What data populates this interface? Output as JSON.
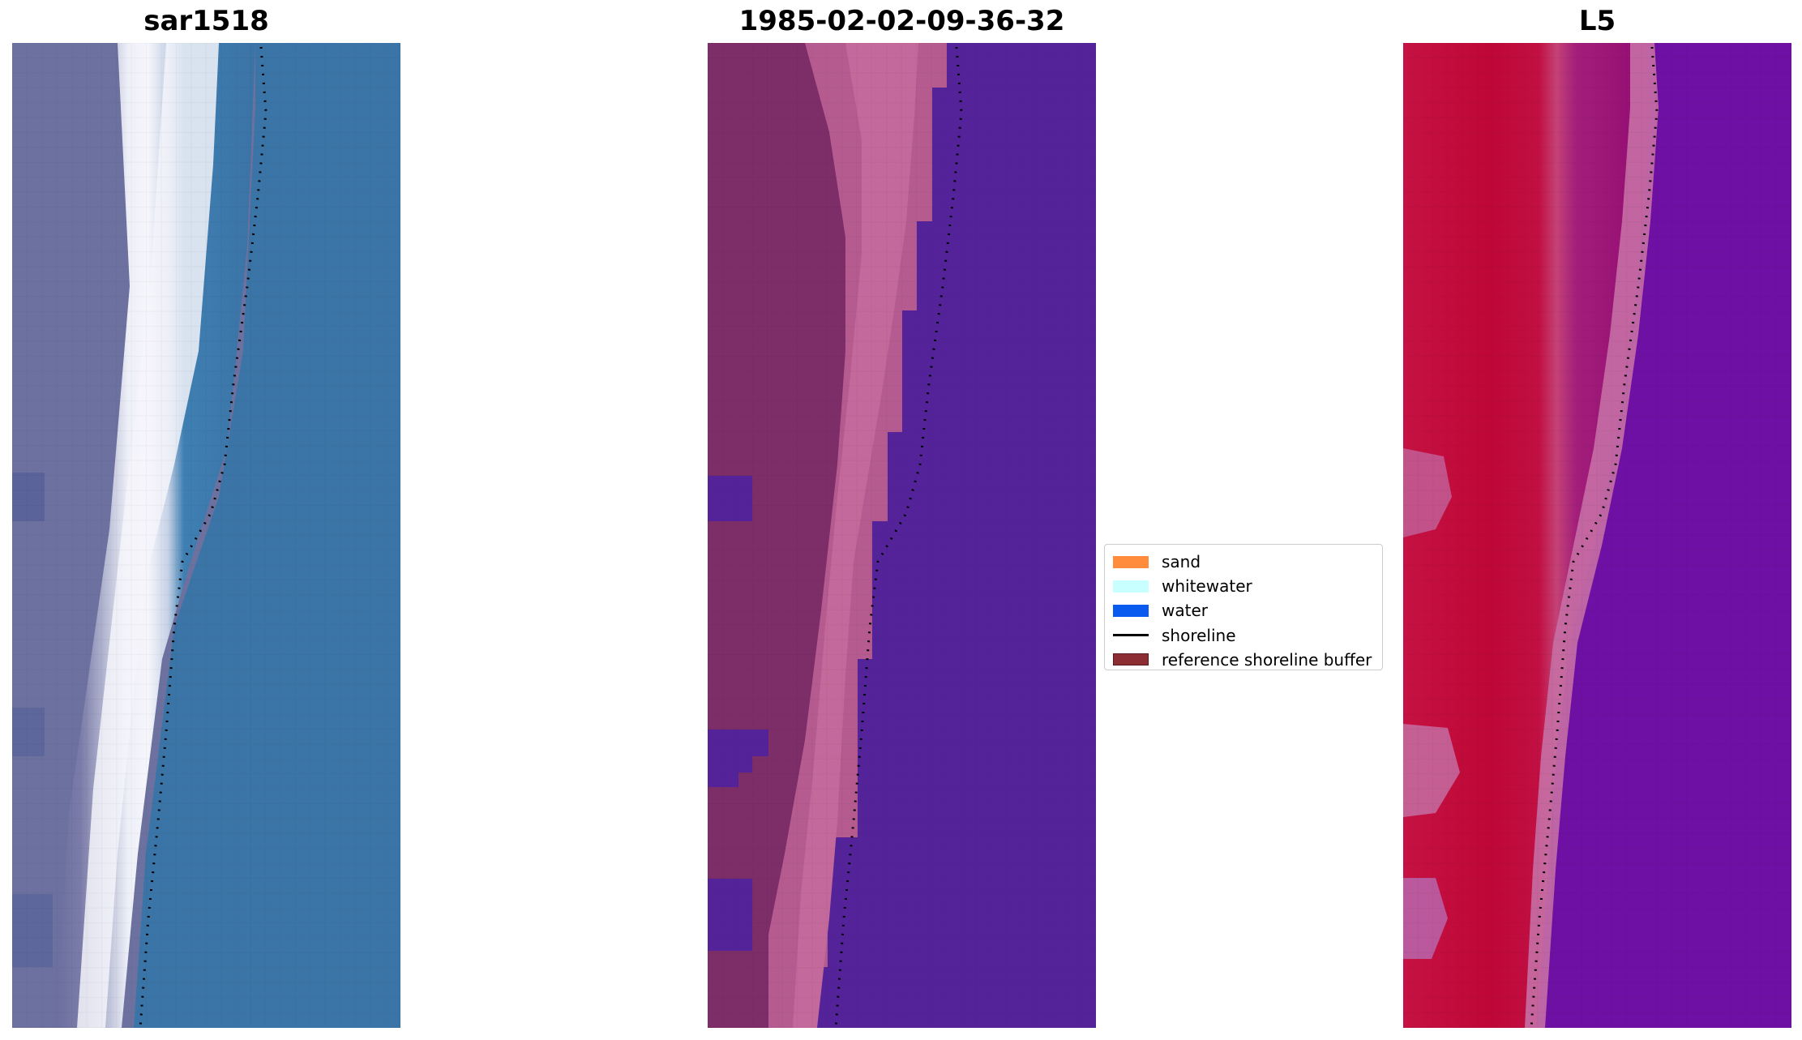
{
  "panels": [
    {
      "title": "sar1518"
    },
    {
      "title": "1985-02-02-09-36-32"
    },
    {
      "title": "L5"
    }
  ],
  "legend": {
    "items": [
      {
        "label": "sand",
        "color": "#FF8C3C",
        "kind": "patch"
      },
      {
        "label": "whitewater",
        "color": "#C8FFFF",
        "kind": "patch"
      },
      {
        "label": "water",
        "color": "#0A5AF0",
        "kind": "patch"
      },
      {
        "label": "shoreline",
        "color": "#000000",
        "kind": "line"
      },
      {
        "label": "reference shoreline buffer",
        "color": "#8B2D33",
        "kind": "patch"
      }
    ]
  },
  "colors": {
    "sar_water": "#3d76a8",
    "sar_land": "#6a6c9c",
    "sar_whitewater": "#f4f4fa",
    "classified_water": "#54239a",
    "classified_sand_dark": "#7d2e68",
    "classified_sand_light": "#c46698",
    "ndwi_land": "#c0083a",
    "ndwi_water": "#6a0aa2",
    "shoreline_dots": "#000000"
  }
}
